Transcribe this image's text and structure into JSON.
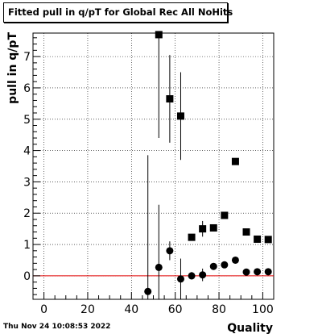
{
  "title": "Fitted pull in q/pT for Global Rec All NoHits",
  "footer_timestamp": "Thu Nov 24 10:08:53 2022",
  "chart_data": {
    "type": "scatter",
    "title": "Fitted pull in q/pT for Global Rec All NoHits",
    "xlabel": "Quality",
    "ylabel": "pull in q/pT",
    "xlim": [
      -5,
      105
    ],
    "ylim": [
      -0.75,
      7.75
    ],
    "xticks": [
      0,
      20,
      40,
      60,
      80,
      100
    ],
    "yticks": [
      0,
      1,
      2,
      3,
      4,
      5,
      6,
      7
    ],
    "grid": true,
    "reference_line": {
      "y": 0,
      "color": "#e00000"
    },
    "series": [
      {
        "marker": "square",
        "points": [
          {
            "x": 52.5,
            "y": 7.7,
            "err": 3.3
          },
          {
            "x": 57.5,
            "y": 5.65,
            "err": 1.4
          },
          {
            "x": 62.5,
            "y": 5.1,
            "err": 1.4
          },
          {
            "x": 67.5,
            "y": 1.23,
            "err": 0.1
          },
          {
            "x": 72.5,
            "y": 1.5,
            "err": 0.25
          },
          {
            "x": 77.5,
            "y": 1.53,
            "err": 0.1
          },
          {
            "x": 82.5,
            "y": 1.93,
            "err": 0.07
          },
          {
            "x": 87.5,
            "y": 3.65,
            "err": 0.07
          },
          {
            "x": 92.5,
            "y": 1.4,
            "err": 0.05
          },
          {
            "x": 97.5,
            "y": 1.17,
            "err": 0.05
          },
          {
            "x": 102.5,
            "y": 1.16,
            "err": 0.05
          }
        ]
      },
      {
        "marker": "circle",
        "points": [
          {
            "x": 47.5,
            "y": -0.5,
            "err": 4.35
          },
          {
            "x": 52.5,
            "y": 0.27,
            "err": 2.0
          },
          {
            "x": 57.5,
            "y": 0.8,
            "err": 0.3
          },
          {
            "x": 62.5,
            "y": -0.1,
            "err": 0.65
          },
          {
            "x": 67.5,
            "y": 0.0,
            "err": 0.12
          },
          {
            "x": 72.5,
            "y": 0.03,
            "err": 0.2
          },
          {
            "x": 77.5,
            "y": 0.3,
            "err": 0.08
          },
          {
            "x": 82.5,
            "y": 0.35,
            "err": 0.07
          },
          {
            "x": 87.5,
            "y": 0.5,
            "err": 0.05
          },
          {
            "x": 92.5,
            "y": 0.12,
            "err": 0.04
          },
          {
            "x": 97.5,
            "y": 0.13,
            "err": 0.04
          },
          {
            "x": 102.5,
            "y": 0.13,
            "err": 0.04
          }
        ]
      }
    ]
  }
}
